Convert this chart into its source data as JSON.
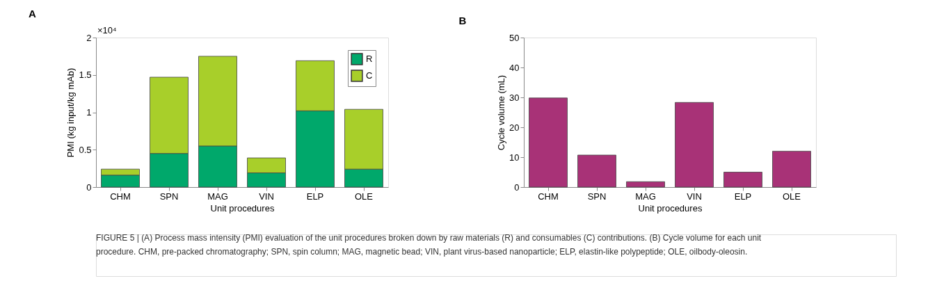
{
  "chart_data": [
    {
      "type": "bar",
      "title": "A",
      "xlabel": "Unit procedures",
      "ylabel": "PMI (kg input/kg mAb)",
      "categories": [
        "CHM",
        "SPN",
        "MAG",
        "VIN",
        "ELP",
        "OLE"
      ],
      "stacked": true,
      "series": [
        {
          "name": "R",
          "color": "#00a86b",
          "values": [
            0.16,
            0.45,
            0.55,
            0.19,
            1.02,
            0.24
          ]
        },
        {
          "name": "C",
          "color": "#a8cf2a",
          "values": [
            0.08,
            1.02,
            1.2,
            0.2,
            0.67,
            0.8
          ]
        }
      ],
      "ylim": [
        0,
        2
      ],
      "yticks": [
        0,
        0.5,
        1,
        1.5,
        2
      ],
      "legend": "top right",
      "grid": false,
      "annotations": [
        "×10⁴"
      ]
    },
    {
      "type": "bar",
      "title": "B",
      "xlabel": "Unit procedures",
      "ylabel": "Cycle volume (mL)",
      "categories": [
        "CHM",
        "SPN",
        "MAG",
        "VIN",
        "ELP",
        "OLE"
      ],
      "series": [
        {
          "color": "#a83277",
          "values": [
            29.8,
            10.7,
            1.8,
            28.3,
            5.0,
            12.0
          ]
        }
      ],
      "ylim": [
        0,
        50
      ],
      "yticks": [
        0,
        10,
        20,
        30,
        40,
        50
      ],
      "grid": false,
      "annotations": [
        "FIGURE 5 | (A) Process mass intensity (PMI) evaluation of the unit procedures broken down by raw materials (R) and consumables (C) contributions. (B) Cycle volume for each unit procedure. CHM, pre-packed chromatography; SPN, spin column; MAG, magnetic bead; VIN, plant virus-based nanoparticle; ELP, elastin-like polypeptide; OLE, oilbody-oleosin."
      ]
    }
  ]
}
